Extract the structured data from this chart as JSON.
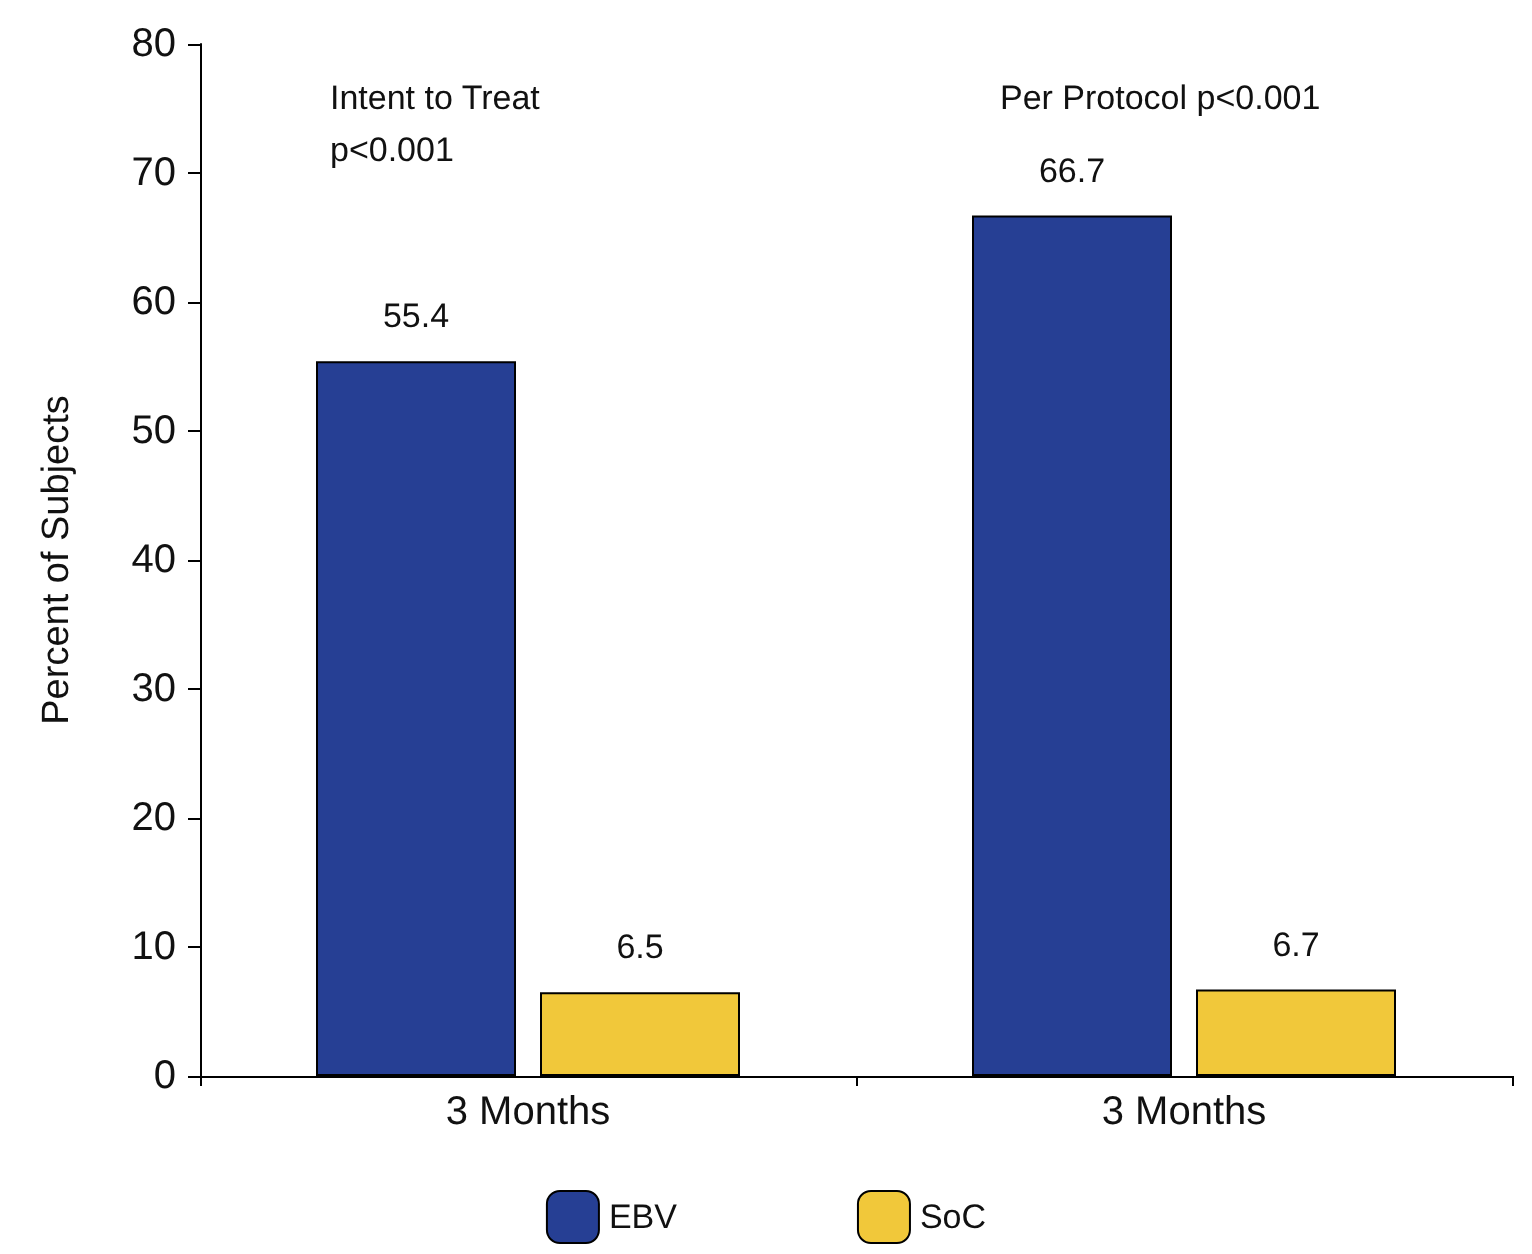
{
  "chart_data": {
    "type": "bar",
    "ylabel": "Percent of Subjects",
    "categories": [
      "3 Months",
      "3 Months"
    ],
    "series": [
      {
        "name": "EBV",
        "color": "#263f94",
        "values": [
          55.4,
          66.7
        ]
      },
      {
        "name": "SoC",
        "color": "#f1c83a",
        "values": [
          6.5,
          6.7
        ]
      }
    ],
    "ylim": [
      0,
      80
    ],
    "yticks": [
      0,
      10,
      20,
      30,
      40,
      50,
      60,
      70,
      80
    ],
    "grid": false,
    "legend": "bottom",
    "data_labels": true,
    "annotations": [
      "Intent to Treat\np<0.001",
      "Per Protocol p<0.001"
    ]
  }
}
